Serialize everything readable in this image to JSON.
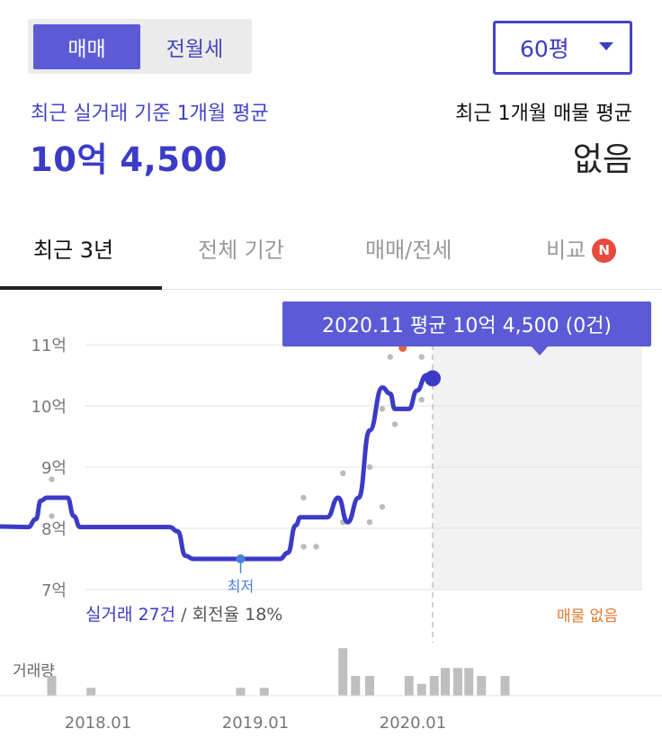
{
  "deal_type_tabs": [
    {
      "label": "매매",
      "active": true
    },
    {
      "label": "전월세",
      "active": false
    }
  ],
  "area_select": {
    "value": "60평"
  },
  "summary": {
    "recent_label": "최근 실거래 기준 1개월 평균",
    "recent_value": "10억 4,500",
    "listing_label": "최근 1개월 매물 평균",
    "listing_value": "없음"
  },
  "period_tabs": [
    {
      "label": "최근 3년",
      "active": true
    },
    {
      "label": "전체 기간",
      "active": false
    },
    {
      "label": "매매/전세",
      "active": false
    },
    {
      "label": "비교",
      "active": false,
      "badge": "N"
    }
  ],
  "tooltip": "2020.11 평균 10억 4,500 (0건)",
  "transactions": {
    "count_text": "실거래 27건",
    "separator": " / ",
    "rate_text": "회전율 18%"
  },
  "no_listing_label": "매물 없음",
  "colors": {
    "accent": "#3b3bc8",
    "tooltip_bg": "#5b5bd6",
    "badge": "#e84a3b",
    "listing_point": "#e8643b",
    "point": "#bbbbbb",
    "volume_bar": "#bfbfbf"
  },
  "chart_data": {
    "type": "line",
    "y_unit": "억",
    "ylim": [
      7,
      11
    ],
    "y_ticks": [
      {
        "v": 11,
        "label": "11억"
      },
      {
        "v": 10,
        "label": "10억"
      },
      {
        "v": 9,
        "label": "9억"
      },
      {
        "v": 8,
        "label": "8억"
      },
      {
        "v": 7,
        "label": "7억"
      }
    ],
    "x_ticks": [
      {
        "v": 2018.0,
        "label": "2018.01"
      },
      {
        "v": 2019.0,
        "label": "2019.01"
      },
      {
        "v": 2020.0,
        "label": "2020.01"
      }
    ],
    "grid": true,
    "average_line": [
      [
        2017.35,
        8.03
      ],
      [
        2017.55,
        8.02
      ],
      [
        2017.6,
        8.15
      ],
      [
        2017.63,
        8.45
      ],
      [
        2017.67,
        8.5
      ],
      [
        2017.8,
        8.5
      ],
      [
        2017.84,
        8.2
      ],
      [
        2017.88,
        8.02
      ],
      [
        2018.45,
        8.02
      ],
      [
        2018.5,
        7.95
      ],
      [
        2018.55,
        7.55
      ],
      [
        2018.6,
        7.5
      ],
      [
        2019.15,
        7.5
      ],
      [
        2019.2,
        7.6
      ],
      [
        2019.25,
        8.05
      ],
      [
        2019.28,
        8.18
      ],
      [
        2019.45,
        8.18
      ],
      [
        2019.52,
        8.5
      ],
      [
        2019.58,
        8.1
      ],
      [
        2019.65,
        8.5
      ],
      [
        2019.72,
        9.6
      ],
      [
        2019.8,
        10.3
      ],
      [
        2019.85,
        10.2
      ],
      [
        2019.88,
        9.95
      ],
      [
        2019.97,
        9.95
      ],
      [
        2020.02,
        10.25
      ],
      [
        2020.08,
        10.5
      ],
      [
        2020.12,
        10.5
      ]
    ],
    "transactions": [
      [
        2017.7,
        8.8
      ],
      [
        2017.7,
        8.2
      ],
      [
        2019.3,
        7.7
      ],
      [
        2019.38,
        7.7
      ],
      [
        2019.3,
        8.5
      ],
      [
        2019.55,
        8.9
      ],
      [
        2019.55,
        8.1
      ],
      [
        2019.72,
        9.0
      ],
      [
        2019.72,
        8.1
      ],
      [
        2019.8,
        9.95
      ],
      [
        2019.8,
        8.35
      ],
      [
        2019.85,
        10.8
      ],
      [
        2019.88,
        9.7
      ],
      [
        2020.05,
        10.8
      ],
      [
        2020.05,
        10.1
      ]
    ],
    "listing_points": [
      [
        2019.93,
        10.95
      ]
    ],
    "lowest_point": {
      "x": 2018.9,
      "y": 7.5,
      "label": "최저"
    },
    "current_point": {
      "x": 2020.12,
      "y": 10.45
    },
    "volume": {
      "label": "거래량",
      "bars": [
        [
          2017.7,
          1
        ],
        [
          2017.95,
          0.4
        ],
        [
          2018.9,
          0.4
        ],
        [
          2019.05,
          0.4
        ],
        [
          2019.55,
          2.4
        ],
        [
          2019.63,
          1.0
        ],
        [
          2019.72,
          1.0
        ],
        [
          2019.97,
          1.0
        ],
        [
          2020.05,
          0.6
        ],
        [
          2020.13,
          1.0
        ],
        [
          2020.2,
          1.4
        ],
        [
          2020.28,
          1.4
        ],
        [
          2020.35,
          1.4
        ],
        [
          2020.43,
          1.0
        ],
        [
          2020.58,
          1.0
        ]
      ]
    }
  }
}
